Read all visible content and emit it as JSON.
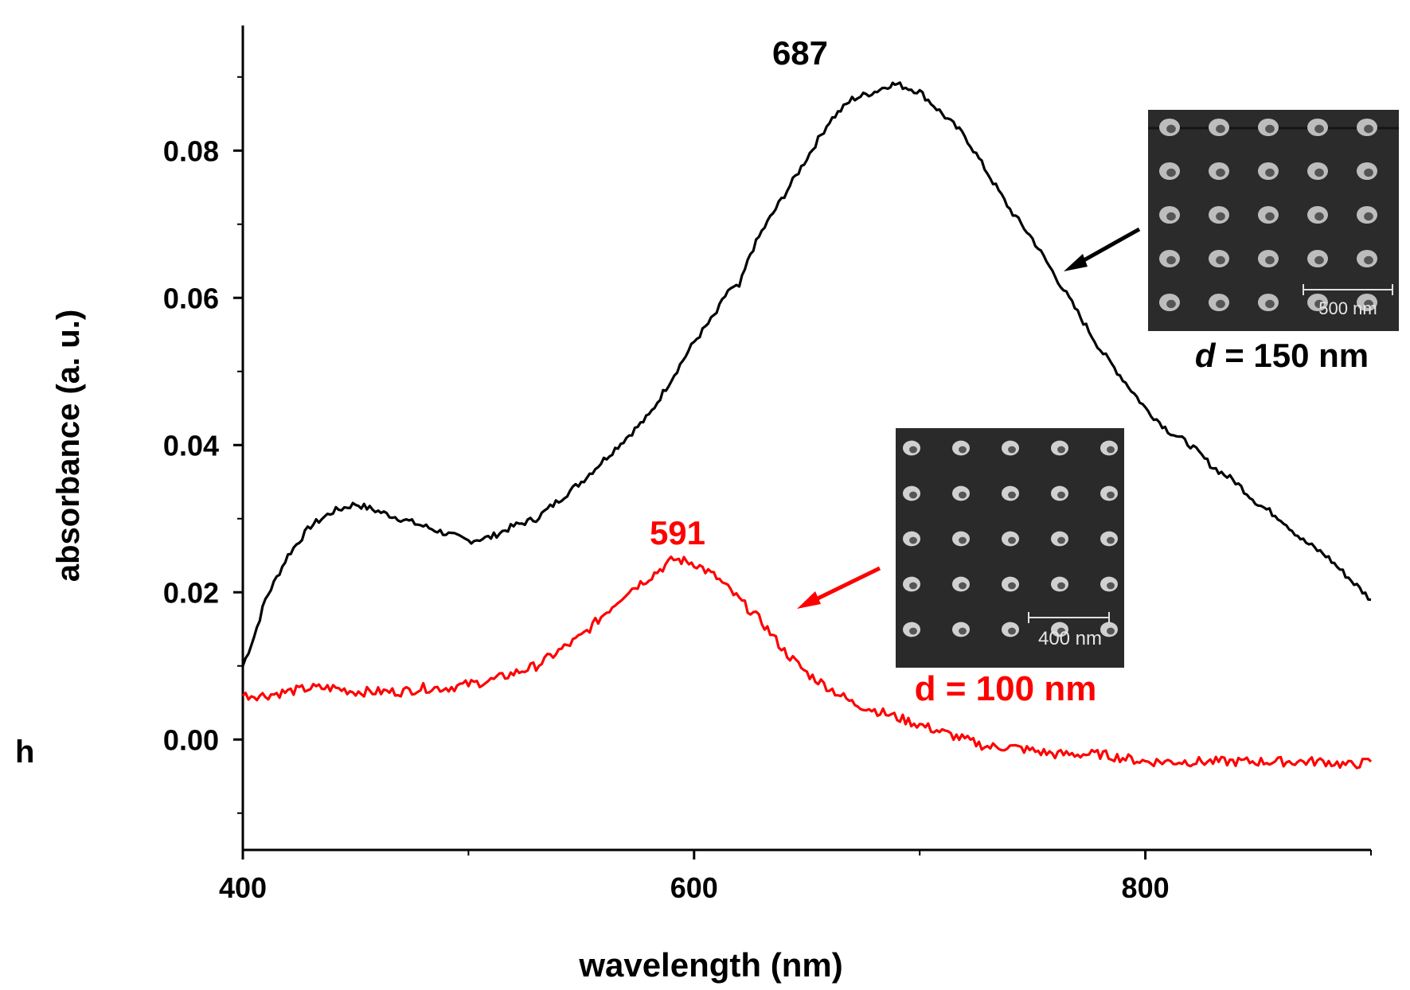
{
  "chart_data": {
    "type": "line",
    "title": "",
    "xlabel": "wavelength (nm)",
    "ylabel": "absorbance (a. u.)",
    "xlim": [
      400,
      900
    ],
    "ylim": [
      -0.015,
      0.097
    ],
    "xticks": [
      400,
      600,
      800
    ],
    "xtick_labels": [
      "400",
      "600",
      "800"
    ],
    "yticks": [
      0.0,
      0.02,
      0.04,
      0.06,
      0.08
    ],
    "ytick_labels": [
      "0.00",
      "0.02",
      "0.04",
      "0.06",
      "0.08"
    ],
    "grid": false,
    "legend": "none",
    "series": [
      {
        "color": "#000000",
        "x": [
          400,
          405,
          410,
          420,
          430,
          440,
          450,
          460,
          470,
          480,
          490,
          500,
          510,
          520,
          530,
          540,
          550,
          560,
          570,
          580,
          590,
          600,
          610,
          615,
          620,
          625,
          630,
          640,
          650,
          660,
          670,
          680,
          687,
          690,
          700,
          710,
          720,
          730,
          740,
          750,
          760,
          770,
          780,
          790,
          800,
          810,
          820,
          830,
          840,
          850,
          860,
          870,
          880,
          890,
          900
        ],
        "y": [
          0.01,
          0.014,
          0.019,
          0.025,
          0.029,
          0.031,
          0.032,
          0.031,
          0.03,
          0.029,
          0.028,
          0.027,
          0.0275,
          0.029,
          0.03,
          0.0325,
          0.035,
          0.038,
          0.041,
          0.044,
          0.049,
          0.054,
          0.058,
          0.061,
          0.0615,
          0.066,
          0.069,
          0.074,
          0.079,
          0.084,
          0.087,
          0.088,
          0.089,
          0.089,
          0.088,
          0.085,
          0.082,
          0.077,
          0.072,
          0.068,
          0.063,
          0.058,
          0.053,
          0.049,
          0.045,
          0.042,
          0.04,
          0.037,
          0.035,
          0.032,
          0.03,
          0.027,
          0.025,
          0.022,
          0.019
        ],
        "peak_label": "687",
        "peak_x": 687
      },
      {
        "color": "#ff0000",
        "x": [
          400,
          410,
          420,
          430,
          440,
          450,
          460,
          470,
          480,
          490,
          500,
          510,
          520,
          530,
          540,
          550,
          560,
          570,
          580,
          591,
          600,
          610,
          620,
          630,
          640,
          650,
          660,
          670,
          680,
          690,
          700,
          710,
          720,
          730,
          740,
          750,
          760,
          770,
          780,
          790,
          800,
          810,
          820,
          830,
          840,
          850,
          860,
          870,
          880,
          890,
          900
        ],
        "y": [
          0.006,
          0.006,
          0.0065,
          0.007,
          0.007,
          0.0065,
          0.0065,
          0.0065,
          0.007,
          0.007,
          0.0075,
          0.008,
          0.009,
          0.01,
          0.012,
          0.014,
          0.017,
          0.02,
          0.022,
          0.0245,
          0.024,
          0.022,
          0.019,
          0.016,
          0.012,
          0.009,
          0.007,
          0.005,
          0.004,
          0.003,
          0.002,
          0.001,
          0.0,
          -0.001,
          -0.001,
          -0.0015,
          -0.002,
          -0.002,
          -0.002,
          -0.0025,
          -0.003,
          -0.003,
          -0.003,
          -0.003,
          -0.003,
          -0.003,
          -0.003,
          -0.003,
          -0.003,
          -0.0035,
          -0.003
        ],
        "peak_label": "591",
        "peak_x": 591
      }
    ],
    "annotations": {
      "inset_top_label": "= 150 nm",
      "inset_top_label_symbol": "d",
      "inset_top_scalebar": "500 nm",
      "inset_bottom_label": "d = 100 nm",
      "inset_bottom_scalebar": "400 nm",
      "corner_text": "h"
    }
  }
}
